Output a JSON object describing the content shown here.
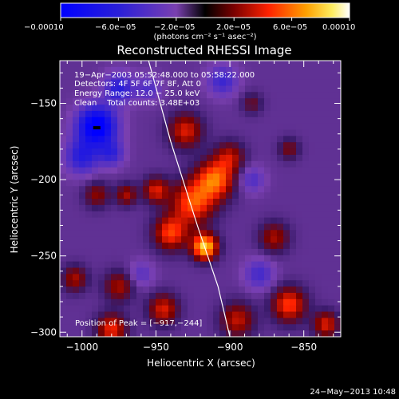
{
  "chart_data": {
    "type": "heatmap",
    "title": "Reconstructed RHESSI Image",
    "xlabel": "Heliocentric X (arcsec)",
    "ylabel": "Heliocentric Y (arcsec)",
    "xlim": [
      -1015,
      -825
    ],
    "ylim": [
      -303,
      -122
    ],
    "x_ticks": [
      -1000,
      -950,
      -900,
      -850
    ],
    "x_tick_labels": [
      "−1000",
      "−950",
      "−900",
      "−850"
    ],
    "y_ticks": [
      -150,
      -200,
      -250,
      -300
    ],
    "y_tick_labels": [
      "−150",
      "−200",
      "−250",
      "−300"
    ],
    "colorbar": {
      "range": [
        -0.0001,
        0.0001
      ],
      "tick_labels": [
        "−0.00010",
        "−6.0e−05",
        "−2.0e−05",
        "2.0e−05",
        "6.0e−05",
        "0.00010"
      ],
      "units": "(photons cm⁻² s⁻¹ asec⁻²)"
    },
    "annotations": [
      "19−Apr−2003 05:52:48.000 to 05:58:22.000",
      "Detectors: 4F 5F 6F 7F 8F, Att 0",
      "Energy Range: 12.0 − 25.0 keV",
      "Clean    Total counts: 3.48E+03"
    ],
    "peak_label": "Position of Peak = [−917,−244]",
    "peak": [
      -917,
      -244
    ],
    "limb_curve": [
      [
        -955,
        -122
      ],
      [
        -940,
        -175
      ],
      [
        -922,
        -230
      ],
      [
        -908,
        -270
      ],
      [
        -900,
        -303
      ]
    ],
    "sources": [
      {
        "x": -910,
        "y": -200,
        "amp": 7e-05,
        "sigma": 9
      },
      {
        "x": -925,
        "y": -215,
        "amp": 6.5e-05,
        "sigma": 10
      },
      {
        "x": -917,
        "y": -244,
        "amp": 9.5e-05,
        "sigma": 6
      },
      {
        "x": -940,
        "y": -235,
        "amp": 6e-05,
        "sigma": 8
      },
      {
        "x": -930,
        "y": -168,
        "amp": 5e-05,
        "sigma": 8
      },
      {
        "x": -900,
        "y": -185,
        "amp": 4e-05,
        "sigma": 7
      },
      {
        "x": -950,
        "y": -207,
        "amp": 5e-05,
        "sigma": 6
      },
      {
        "x": -970,
        "y": -210,
        "amp": 4e-05,
        "sigma": 5
      },
      {
        "x": -990,
        "y": -210,
        "amp": 3.5e-05,
        "sigma": 6
      },
      {
        "x": -1005,
        "y": -265,
        "amp": 4e-05,
        "sigma": 6
      },
      {
        "x": -975,
        "y": -270,
        "amp": 4e-05,
        "sigma": 7
      },
      {
        "x": -980,
        "y": -298,
        "amp": 5.5e-05,
        "sigma": 7
      },
      {
        "x": -945,
        "y": -285,
        "amp": 5e-05,
        "sigma": 7
      },
      {
        "x": -895,
        "y": -292,
        "amp": 4.5e-05,
        "sigma": 8
      },
      {
        "x": -860,
        "y": -282,
        "amp": 6e-05,
        "sigma": 8
      },
      {
        "x": -835,
        "y": -295,
        "amp": 5e-05,
        "sigma": 6
      },
      {
        "x": -870,
        "y": -238,
        "amp": 4e-05,
        "sigma": 7
      },
      {
        "x": -860,
        "y": -180,
        "amp": 3e-05,
        "sigma": 5
      },
      {
        "x": -885,
        "y": -150,
        "amp": 2.5e-05,
        "sigma": 5
      },
      {
        "x": -990,
        "y": -165,
        "amp": -0.0001,
        "sigma": 9
      },
      {
        "x": -975,
        "y": -140,
        "amp": -5e-05,
        "sigma": 7
      },
      {
        "x": -1000,
        "y": -185,
        "amp": -5e-05,
        "sigma": 8
      },
      {
        "x": -980,
        "y": -183,
        "amp": -4e-05,
        "sigma": 6
      },
      {
        "x": -955,
        "y": -140,
        "amp": -3e-05,
        "sigma": 6
      },
      {
        "x": -905,
        "y": -135,
        "amp": -4e-05,
        "sigma": 7
      },
      {
        "x": -885,
        "y": -200,
        "amp": -3e-05,
        "sigma": 6
      },
      {
        "x": -880,
        "y": -262,
        "amp": -3.5e-05,
        "sigma": 7
      },
      {
        "x": -960,
        "y": -262,
        "amp": -2.5e-05,
        "sigma": 6
      }
    ]
  },
  "footer": {
    "date": "24−May−2013 10:48"
  }
}
